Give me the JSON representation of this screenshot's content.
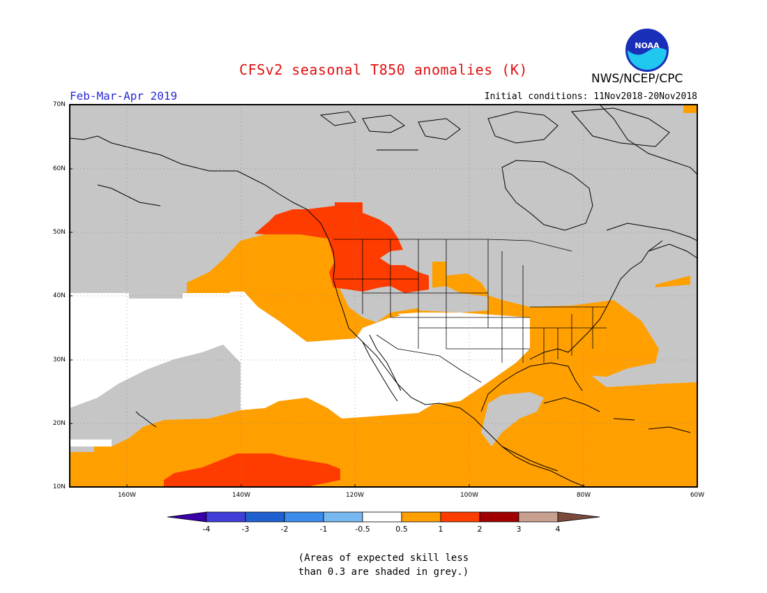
{
  "header": {
    "title": "CFSv2 seasonal T850 anomalies (K)",
    "org": "NWS/NCEP/CPC",
    "period": "Feb-Mar-Apr 2019",
    "initial_conditions": "Initial conditions: 11Nov2018-20Nov2018",
    "logo_text": "NOAA"
  },
  "map": {
    "lat_labels": [
      "70N",
      "60N",
      "50N",
      "40N",
      "30N",
      "20N",
      "10N"
    ],
    "lon_labels": [
      "160W",
      "140W",
      "120W",
      "100W",
      "80W",
      "60W"
    ],
    "lat_range": [
      10,
      70
    ],
    "lon_range": [
      -170,
      -60
    ]
  },
  "colorbar": {
    "labels": [
      "-4",
      "-3",
      "-2",
      "-1",
      "-0.5",
      "0.5",
      "1",
      "2",
      "3",
      "4"
    ],
    "colors": [
      "#3a00a8",
      "#4040d8",
      "#2060d0",
      "#3c8cec",
      "#78b8f0",
      "#ffffff",
      "#ff9f00",
      "#ff3d00",
      "#a00000",
      "#c8a090",
      "#7a4a3c"
    ]
  },
  "colors": {
    "grey": "#c6c6c6",
    "orange": "#ff9f00",
    "red": "#ff3c00",
    "white": "#ffffff",
    "title": "#e01010",
    "period": "#2a2ad8"
  },
  "footnote": {
    "line1": "(Areas of expected skill less",
    "line2": "than 0.3 are shaded in grey.)"
  }
}
